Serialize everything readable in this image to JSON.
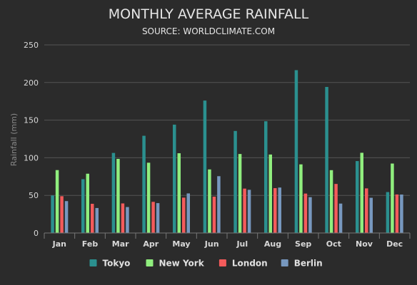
{
  "chart_data": {
    "type": "bar",
    "title": "MONTHLY AVERAGE RAINFALL",
    "subtitle": "SOURCE: WORLDCLIMATE.COM",
    "xlabel": "",
    "ylabel": "Rainfall (mm)",
    "ylim": [
      0,
      250
    ],
    "yticks": [
      0,
      50,
      100,
      150,
      200,
      250
    ],
    "grid": true,
    "legend_position": "bottom",
    "categories": [
      "Jan",
      "Feb",
      "Mar",
      "Apr",
      "May",
      "Jun",
      "Jul",
      "Aug",
      "Sep",
      "Oct",
      "Nov",
      "Dec"
    ],
    "series": [
      {
        "name": "Tokyo",
        "color": "#2b908f",
        "values": [
          49.9,
          71.5,
          106.4,
          129.2,
          144.0,
          176.0,
          135.6,
          148.5,
          216.4,
          194.1,
          95.6,
          54.4
        ]
      },
      {
        "name": "New York",
        "color": "#90ee7e",
        "values": [
          83.6,
          78.8,
          98.5,
          93.4,
          106.0,
          84.5,
          105.0,
          104.3,
          91.2,
          83.5,
          106.6,
          92.3
        ]
      },
      {
        "name": "London",
        "color": "#f45b5b",
        "values": [
          48.9,
          38.8,
          39.3,
          41.4,
          47.0,
          48.3,
          59.0,
          59.6,
          52.4,
          65.2,
          59.3,
          51.2
        ]
      },
      {
        "name": "Berlin",
        "color": "#7798bf",
        "values": [
          42.4,
          33.2,
          34.5,
          39.7,
          52.6,
          75.5,
          57.4,
          60.4,
          47.6,
          39.1,
          46.8,
          51.1
        ]
      }
    ]
  }
}
